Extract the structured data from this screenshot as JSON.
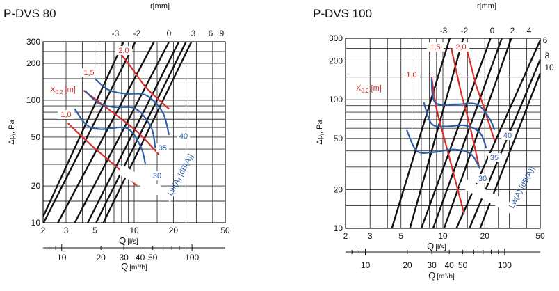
{
  "colors": {
    "black": "#111111",
    "red": "#d9302c",
    "blue": "#2e5fa7"
  },
  "chart_data": [
    {
      "type": "line",
      "title": "P-DVS 80",
      "xlabel": "Q",
      "xunit": "[l/s]",
      "x2label": "Q",
      "x2unit": "[m³/h]",
      "ylabel": "Δp",
      "ylabel_sub": "t",
      "ylabel_unit": ", Pa",
      "toplabel": "r[mm]",
      "throwlabel": "X",
      "throwlabel_sub": "0.2",
      "throwlabel_unit": "[m]",
      "noiselabel": "Lw(A) [dB(A)]",
      "xscale": "log",
      "yscale": "log",
      "xlim": [
        2,
        50
      ],
      "ylim": [
        10,
        300
      ],
      "x_ticks": [
        2,
        3,
        5,
        10,
        20,
        50
      ],
      "x_tick_labels": [
        "2",
        "3",
        "5",
        "10",
        "20",
        "50"
      ],
      "y_ticks": [
        10,
        20,
        50,
        100,
        200,
        300
      ],
      "y_tick_labels": [
        "10",
        "20",
        "50",
        "100",
        "200",
        "300"
      ],
      "m3h_ticks": [
        10,
        20,
        30,
        40,
        50,
        100
      ],
      "m3h_tick_labels": [
        "10",
        "20",
        "30",
        "40",
        "50",
        "100"
      ],
      "grid": true,
      "pressure_lines": [
        {
          "r": "-3",
          "points": [
            [
              2,
              11.2
            ],
            [
              8.3,
              300
            ]
          ]
        },
        {
          "r": "-2",
          "points": [
            [
              2,
              9.8
            ],
            [
              10.2,
              300
            ]
          ]
        },
        {
          "r": "0",
          "points": [
            [
              2.6,
              10
            ],
            [
              14.2,
              300
            ]
          ]
        },
        {
          "r": "3",
          "points": [
            [
              3.5,
              10
            ],
            [
              18.5,
              300
            ]
          ]
        },
        {
          "r": "6",
          "points": [
            [
              4.4,
              10
            ],
            [
              22,
              300
            ]
          ]
        },
        {
          "r": "9",
          "points": [
            [
              5.1,
              10
            ],
            [
              25,
              300
            ]
          ]
        },
        {
          "r": "",
          "points": [
            [
              5.8,
              10
            ],
            [
              27.5,
              300
            ]
          ]
        }
      ],
      "throw_curves": [
        {
          "label": "1,0",
          "points": [
            [
              3.1,
              65
            ],
            [
              4.8,
              42
            ],
            [
              7.5,
              28
            ],
            [
              10.5,
              20
            ]
          ]
        },
        {
          "label": "1,5",
          "points": [
            [
              4.1,
              120
            ],
            [
              6.8,
              80
            ],
            [
              10.6,
              55
            ],
            [
              15.5,
              36
            ]
          ]
        },
        {
          "label": "2,0",
          "points": [
            [
              7.2,
              270
            ],
            [
              9.5,
              185
            ],
            [
              12.5,
              125
            ],
            [
              18.5,
              85
            ]
          ]
        }
      ],
      "noise_curves": [
        {
          "label": "30",
          "points": [
            [
              3.5,
              85
            ],
            [
              4.3,
              63
            ],
            [
              5.5,
              58
            ],
            [
              8.8,
              59
            ],
            [
              11.2,
              42
            ],
            [
              12.2,
              30
            ]
          ]
        },
        {
          "label": "35",
          "points": [
            [
              4.2,
              120
            ],
            [
              5.3,
              95
            ],
            [
              7.0,
              88
            ],
            [
              10.3,
              85
            ],
            [
              13.5,
              60
            ],
            [
              14.5,
              41
            ]
          ]
        },
        {
          "label": "40",
          "points": [
            [
              5.0,
              150
            ],
            [
              6.3,
              122
            ],
            [
              8.6,
              113
            ],
            [
              12.3,
              110
            ],
            [
              16.5,
              80
            ],
            [
              18.5,
              52
            ]
          ]
        }
      ]
    },
    {
      "type": "line",
      "title": "P-DVS 100",
      "xlabel": "Q",
      "xunit": "[l/s]",
      "x2label": "Q",
      "x2unit": "[m³/h]",
      "ylabel": "Δp",
      "ylabel_sub": "t",
      "ylabel_unit": ", Pa",
      "toplabel": "r[mm]",
      "throwlabel": "X",
      "throwlabel_sub": "0.2",
      "throwlabel_unit": "[m]",
      "noiselabel": "Lw(A) [dB(A)]",
      "xscale": "log",
      "yscale": "log",
      "xlim": [
        2,
        50
      ],
      "ylim": [
        10,
        300
      ],
      "x_ticks": [
        2,
        3,
        5,
        10,
        20,
        50
      ],
      "x_tick_labels": [
        "2",
        "3",
        "5",
        "10",
        "20",
        "50"
      ],
      "y_ticks": [
        10,
        20,
        50,
        100,
        200,
        300
      ],
      "y_tick_labels": [
        "10",
        "20",
        "50",
        "100",
        "200",
        "300"
      ],
      "m3h_ticks": [
        10,
        20,
        30,
        40,
        50,
        100
      ],
      "m3h_tick_labels": [
        "10",
        "20",
        "30",
        "40",
        "50",
        "100"
      ],
      "grid": true,
      "pressure_lines": [
        {
          "r": "-3",
          "points": [
            [
              4.3,
              10
            ],
            [
              11.2,
              300
            ]
          ]
        },
        {
          "r": "-2",
          "points": [
            [
              5.8,
              10
            ],
            [
              14,
              300
            ]
          ]
        },
        {
          "r": "0",
          "points": [
            [
              7.0,
              10
            ],
            [
              22,
              300
            ]
          ]
        },
        {
          "r": "2",
          "points": [
            [
              8.5,
              10
            ],
            [
              26.5,
              300
            ]
          ]
        },
        {
          "r": "4",
          "points": [
            [
              10.2,
              10
            ],
            [
              31,
              300
            ]
          ]
        },
        {
          "r": "6",
          "points": [
            [
              12.5,
              10
            ],
            [
              50,
              290
            ]
          ]
        },
        {
          "r": "8",
          "points": [
            [
              15.5,
              10
            ],
            [
              50,
              205
            ]
          ]
        },
        {
          "r": "10",
          "points": [
            [
              18.5,
              10
            ],
            [
              50,
              160
            ]
          ]
        }
      ],
      "throw_curves": [
        {
          "label": "1,0",
          "points": [
            [
              8.3,
              150
            ],
            [
              9.0,
              85
            ],
            [
              10.5,
              45
            ],
            [
              12.5,
              22
            ],
            [
              14.2,
              13
            ]
          ]
        },
        {
          "label": "1,5",
          "points": [
            [
              11.5,
              250
            ],
            [
              12.3,
              180
            ],
            [
              13.6,
              110
            ],
            [
              15.5,
              65
            ],
            [
              18.2,
              30
            ]
          ]
        },
        {
          "label": "2,0",
          "points": [
            [
              14.5,
              270
            ],
            [
              15.8,
              190
            ],
            [
              17.3,
              130
            ],
            [
              19.5,
              90
            ],
            [
              23.5,
              48
            ]
          ]
        }
      ],
      "noise_curves": [
        {
          "label": "30",
          "points": [
            [
              5.5,
              58
            ],
            [
              6.5,
              40
            ],
            [
              8.5,
              39
            ],
            [
              11.8,
              41
            ],
            [
              15.8,
              38
            ],
            [
              18.5,
              29
            ]
          ]
        },
        {
          "label": "35",
          "points": [
            [
              7.3,
              95
            ],
            [
              8.3,
              65
            ],
            [
              10.5,
              62
            ],
            [
              14.5,
              63
            ],
            [
              18.5,
              55
            ],
            [
              20.5,
              42
            ]
          ]
        },
        {
          "label": "40",
          "points": [
            [
              8.3,
              145
            ],
            [
              8.8,
              95
            ],
            [
              12.5,
              92
            ],
            [
              17.5,
              92
            ],
            [
              21.5,
              72
            ],
            [
              23.5,
              58
            ]
          ]
        }
      ]
    }
  ]
}
